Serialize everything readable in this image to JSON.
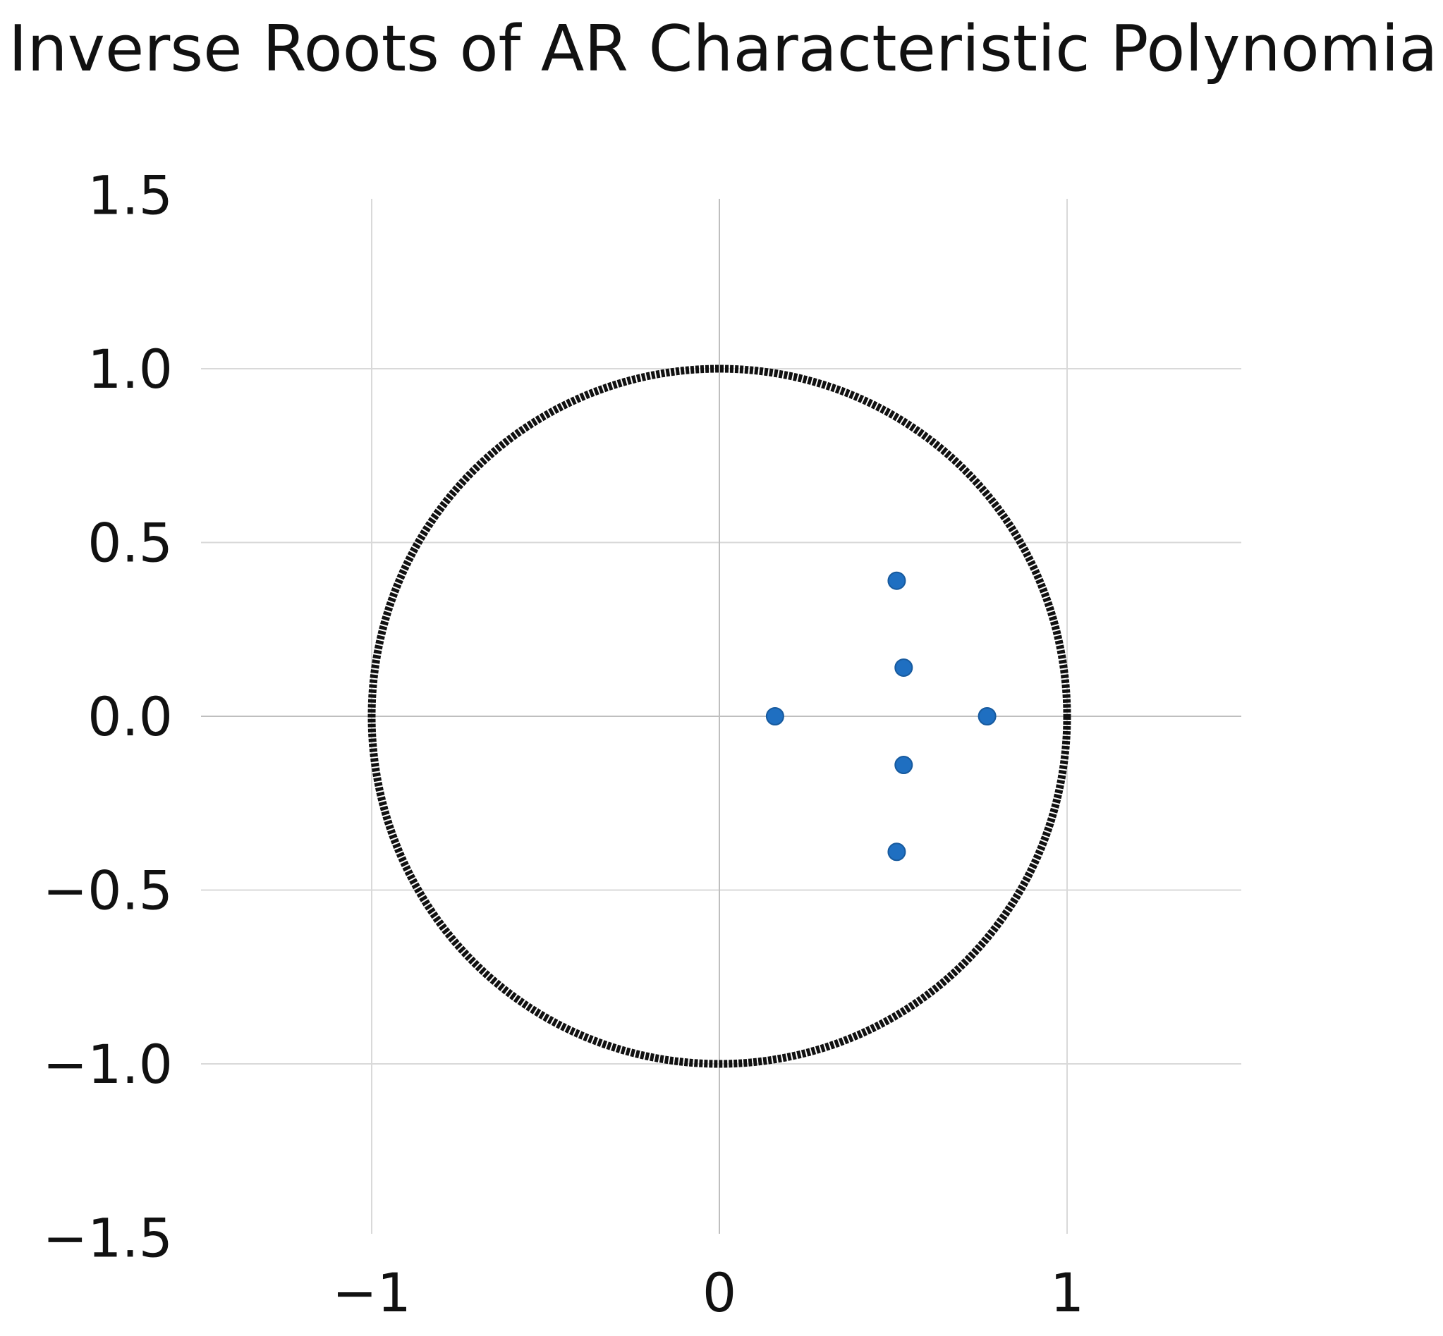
{
  "chart_data": {
    "type": "scatter",
    "title": "Inverse Roots of AR Characteristic Polynomial",
    "xlabel": "",
    "ylabel": "",
    "xlim": [
      -1.5,
      1.5
    ],
    "ylim": [
      -1.5,
      1.5
    ],
    "x_ticks": [
      {
        "value": -1,
        "label": "−1"
      },
      {
        "value": 0,
        "label": "0"
      },
      {
        "value": 1,
        "label": "1"
      }
    ],
    "y_ticks": [
      {
        "value": 1.5,
        "label": "1.5"
      },
      {
        "value": 1.0,
        "label": "1.0"
      },
      {
        "value": 0.5,
        "label": "0.5"
      },
      {
        "value": 0.0,
        "label": "0.0"
      },
      {
        "value": -0.5,
        "label": "−0.5"
      },
      {
        "value": -1.0,
        "label": "−1.0"
      },
      {
        "value": -1.5,
        "label": "−1.5"
      }
    ],
    "grid": true,
    "unit_circle": {
      "radius": 1,
      "style": "dotted",
      "color": "#111111"
    },
    "series": [
      {
        "color": "#1f6fc1",
        "points": [
          {
            "x": 0.16,
            "y": 0.0
          },
          {
            "x": 0.77,
            "y": 0.0
          },
          {
            "x": 0.51,
            "y": 0.39
          },
          {
            "x": 0.53,
            "y": 0.14
          },
          {
            "x": 0.53,
            "y": -0.14
          },
          {
            "x": 0.51,
            "y": -0.39
          }
        ]
      }
    ]
  },
  "colors": {
    "grid": "#d9d9d9",
    "axis_zero": "#bfbfbf",
    "text": "#111111"
  }
}
